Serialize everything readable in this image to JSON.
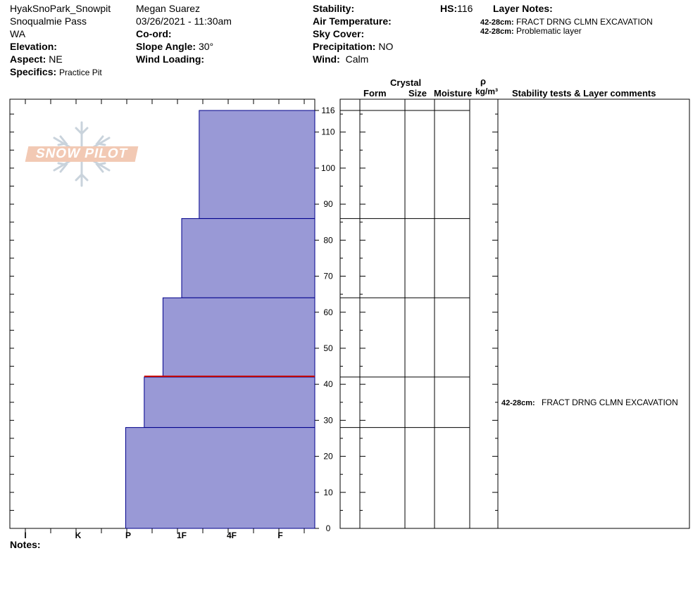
{
  "header": {
    "pit_name": "HyakSnoPark_Snowpit",
    "location": "Snoqualmie Pass",
    "state": "WA",
    "observer": "Megan Suarez",
    "datetime": "03/26/2021 - 11:30am",
    "elevation_label": "Elevation:",
    "elevation_value": "",
    "aspect_label": "Aspect:",
    "aspect_value": "NE",
    "specifics_label": "Specifics:",
    "specifics_value": "Practice Pit",
    "coord_label": "Co-ord:",
    "coord_value": "",
    "slope_label": "Slope Angle:",
    "slope_value": "30°",
    "wind_loading_label": "Wind Loading:",
    "wind_loading_value": "",
    "stability_label": "Stability:",
    "stability_value": "",
    "air_temp_label": "Air Temperature:",
    "air_temp_value": "",
    "sky_label": "Sky Cover:",
    "sky_value": "",
    "precip_label": "Precipitation:",
    "precip_value": "NO",
    "wind_label": "Wind:",
    "wind_value": "Calm",
    "hs_label": "HS:",
    "hs_value": "116",
    "layer_notes_label": "Layer Notes:",
    "layer_notes": [
      {
        "range": "42-28cm:",
        "text": "FRACT DRNG CLMN EXCAVATION"
      },
      {
        "range": "42-28cm:",
        "text": "Problematic layer"
      }
    ]
  },
  "logo": {
    "text": "SNOW PILOT",
    "color": "#f2c9b4"
  },
  "columns": {
    "crystal": "Crystal",
    "form": "Form",
    "size": "Size",
    "moisture": "Moisture",
    "rho": "ρ",
    "density_unit": "kg/m³",
    "comments": "Stability tests & Layer comments"
  },
  "notes_label": "Notes:",
  "stability_comment": {
    "range": "42-28cm:",
    "text": "FRACT DRNG CLMN EXCAVATION"
  },
  "chart_data": {
    "type": "bar",
    "orientation": "horizontal-hardness-profile",
    "y_axis": {
      "label": "",
      "min": 0,
      "max": 116,
      "ticks": [
        0,
        10,
        20,
        30,
        40,
        50,
        60,
        70,
        80,
        90,
        100,
        110,
        116
      ]
    },
    "x_axis": {
      "categories": [
        "I",
        "K",
        "P",
        "1F",
        "4F",
        "F"
      ]
    },
    "layers": [
      {
        "top": 116,
        "bottom": 86,
        "hardness": "1F-"
      },
      {
        "top": 86,
        "bottom": 64,
        "hardness": "1F"
      },
      {
        "top": 64,
        "bottom": 42,
        "hardness": "P+"
      },
      {
        "top": 42,
        "bottom": 28,
        "hardness": "P"
      },
      {
        "top": 28,
        "bottom": 0,
        "hardness": "P-"
      }
    ],
    "layer_hardness_index": [
      3.35,
      3.0,
      2.65,
      2.3,
      1.95
    ],
    "problem_layer": {
      "depth": 42,
      "color": "#cc0000"
    },
    "bar_color": "#9999d6",
    "bar_edge_color": "#00008b"
  }
}
